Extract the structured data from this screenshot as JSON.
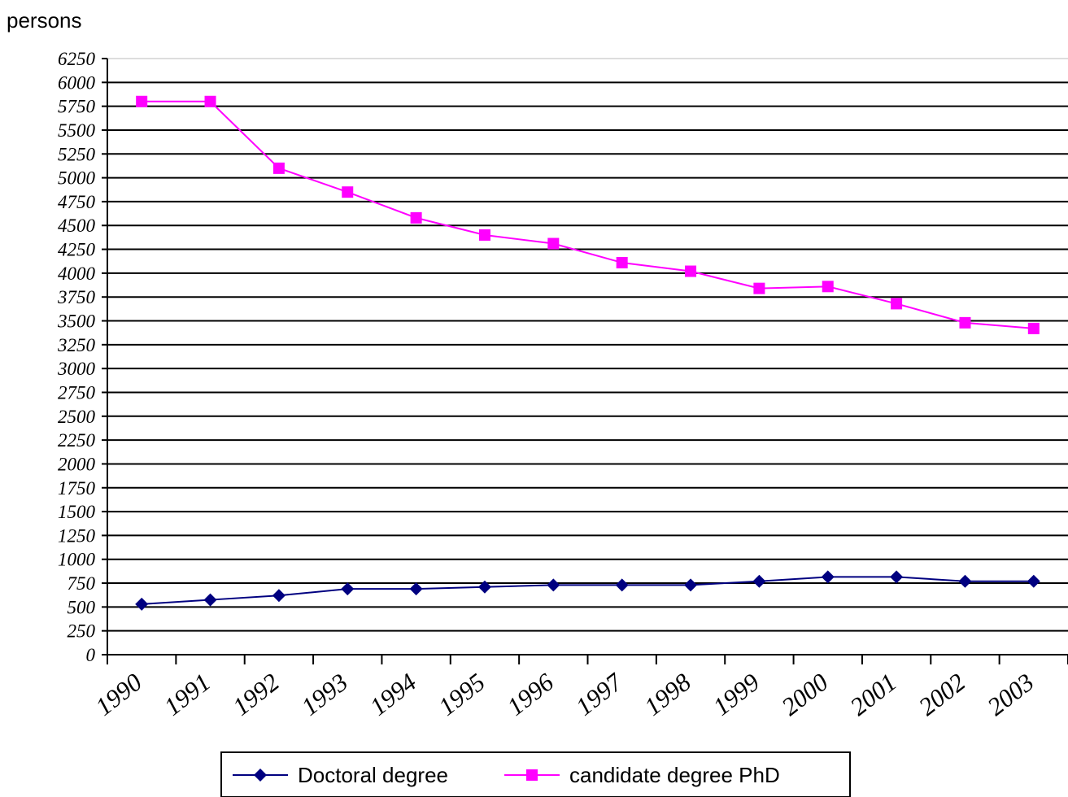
{
  "chart_data": {
    "type": "line",
    "ylabel": "persons",
    "ylim": [
      0,
      6250
    ],
    "ytick_step": 250,
    "grid": true,
    "legend_placement": "bottom",
    "categories": [
      "1990",
      "1991",
      "1992",
      "1993",
      "1994",
      "1995",
      "1996",
      "1997",
      "1998",
      "1999",
      "2000",
      "2001",
      "2002",
      "2003"
    ],
    "series": [
      {
        "name": "Doctoral degree",
        "color": "#000080",
        "marker": "diamond",
        "values": [
          530,
          575,
          620,
          690,
          690,
          710,
          730,
          730,
          730,
          770,
          815,
          815,
          770,
          770
        ]
      },
      {
        "name": "candidate degree PhD",
        "color": "#FF00FF",
        "marker": "square",
        "values": [
          5800,
          5800,
          5100,
          4850,
          4580,
          4400,
          4310,
          4110,
          4020,
          3840,
          3860,
          3680,
          3480,
          3420
        ]
      }
    ]
  }
}
